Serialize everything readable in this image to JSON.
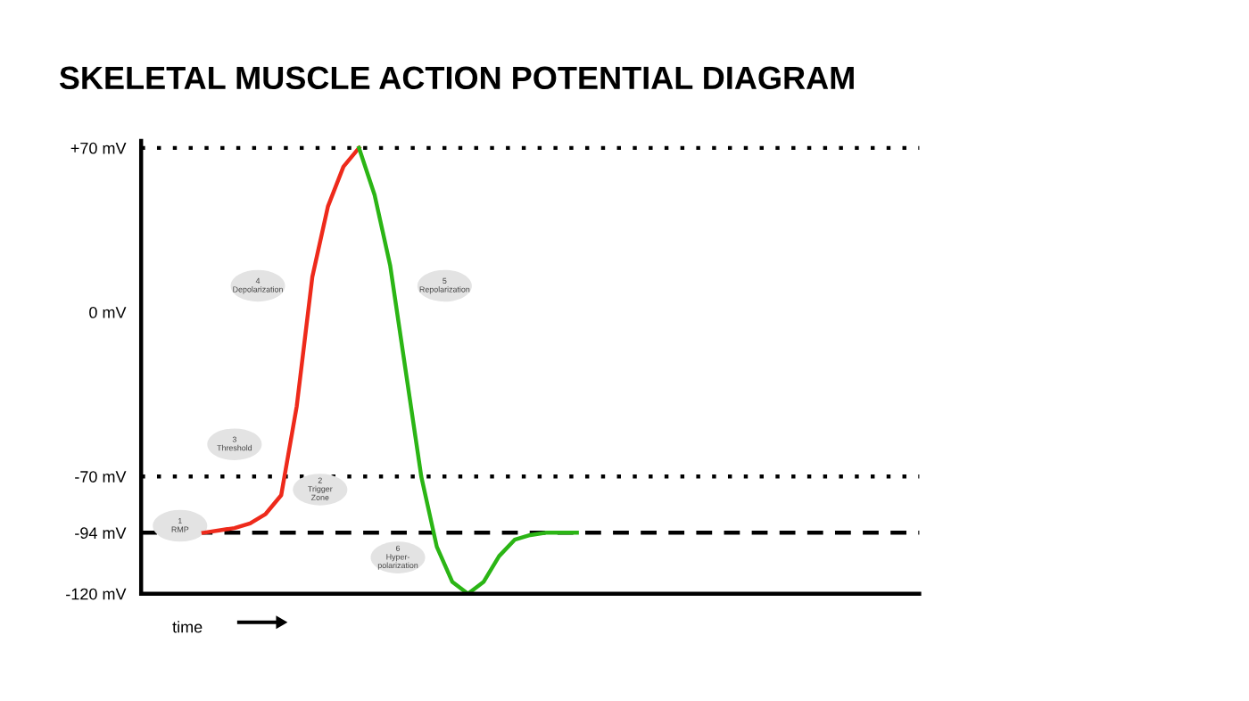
{
  "chart_data": {
    "type": "line",
    "title": "SKELETAL MUSCLE ACTION POTENTIAL DIAGRAM",
    "xlabel": "time",
    "categories": [
      null,
      null,
      null,
      null,
      null,
      null,
      null,
      null,
      null,
      null,
      null,
      null,
      null,
      null,
      null,
      null,
      null,
      null,
      null,
      null,
      null,
      null,
      null,
      null,
      null,
      null,
      null,
      null,
      null,
      null,
      null,
      null,
      null,
      null,
      null,
      null,
      null,
      null,
      null,
      null,
      null,
      null,
      null,
      null,
      null,
      null,
      null,
      null,
      null,
      null,
      null
    ],
    "series": [
      {
        "color": "#ee2a1b",
        "values": [
          null,
          null,
          null,
          null,
          -94,
          -93,
          -92,
          -90,
          -86,
          -78,
          -40,
          15,
          45,
          62,
          70,
          null,
          null,
          null,
          null,
          null,
          null,
          null,
          null,
          null,
          null,
          null,
          null,
          null,
          null,
          null,
          null,
          null,
          null,
          null,
          null,
          null,
          null,
          null,
          null,
          null,
          null,
          null,
          null,
          null,
          null,
          null,
          null,
          null,
          null,
          null,
          null
        ]
      },
      {
        "color": "#2bb515",
        "values": [
          null,
          null,
          null,
          null,
          null,
          null,
          null,
          null,
          null,
          null,
          null,
          null,
          null,
          null,
          70,
          50,
          20,
          -25,
          -70,
          -100,
          -115,
          -120,
          -115,
          -104,
          -97,
          -95,
          -94,
          -94,
          -94,
          null,
          null,
          null,
          null,
          null,
          null,
          null,
          null,
          null,
          null,
          null,
          null,
          null,
          null,
          null,
          null,
          null,
          null,
          null,
          null,
          null,
          null
        ]
      }
    ],
    "ylim": [
      -120,
      73
    ],
    "yticks": [
      {
        "value": 70,
        "label": "+70 mV"
      },
      {
        "value": 0,
        "label": "0 mV"
      },
      {
        "value": -70,
        "label": "-70 mV"
      },
      {
        "value": -94,
        "label": "-94 mV"
      },
      {
        "value": -120,
        "label": "-120 mV"
      }
    ],
    "ref_lines": [
      {
        "axis": "y",
        "value": 70,
        "line_style": "dotted"
      },
      {
        "axis": "y",
        "value": -70,
        "line_style": "dotted"
      },
      {
        "axis": "y",
        "value": -94,
        "line_style": "dashed"
      }
    ],
    "annotations": [
      "1\nRMP",
      "2\nTrigger\nZone",
      "3\nThreshold",
      "4\nDepolarization",
      "5\nRepolarization",
      "6\nHyper-\npolarization"
    ],
    "grid": false,
    "legend": false,
    "marker": "none",
    "line_style": "solid"
  }
}
